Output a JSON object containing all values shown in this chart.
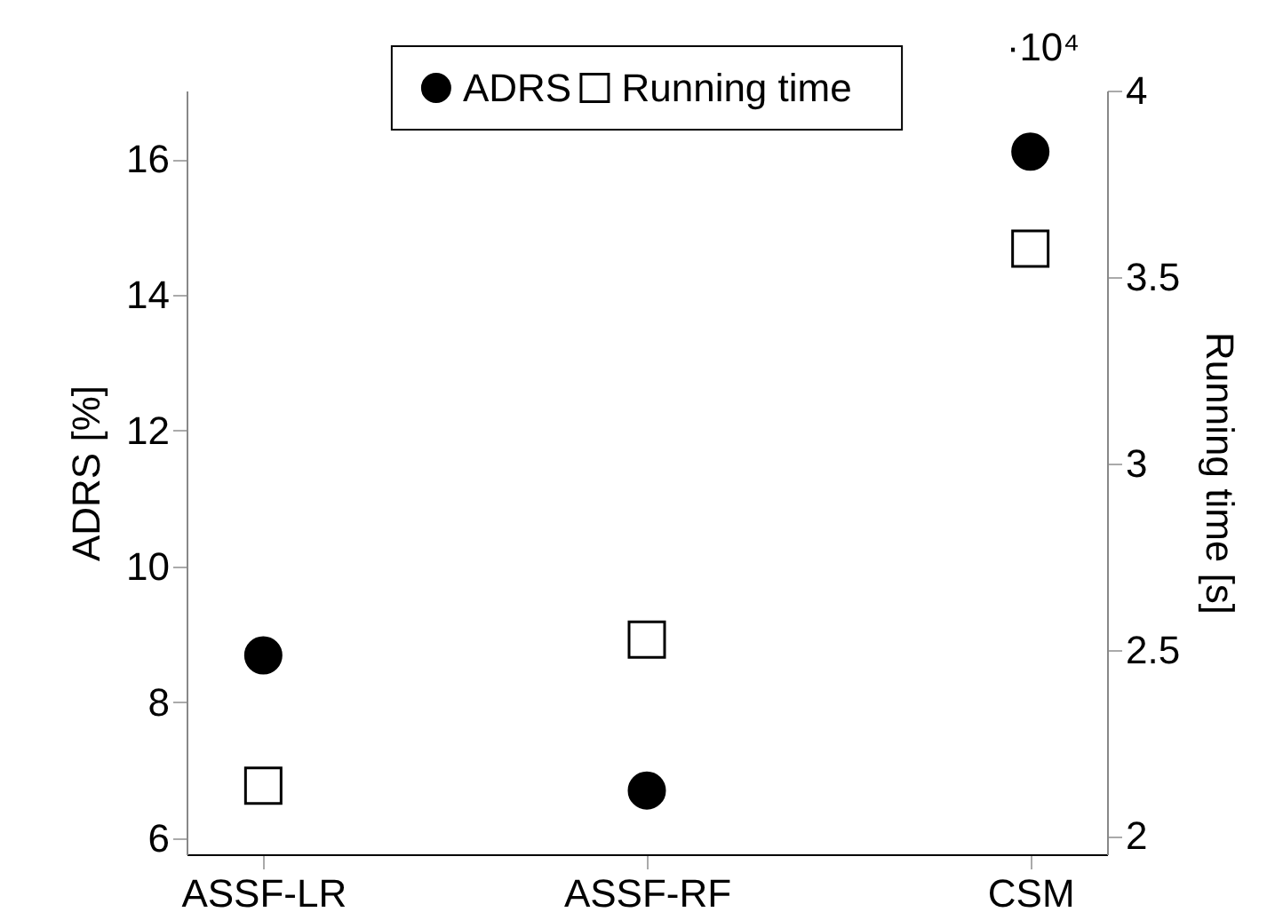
{
  "chart_data": {
    "type": "scatter",
    "categories": [
      "ASSF-LR",
      "ASSF-RF",
      "CSM"
    ],
    "ylabel": "ADRS [%]",
    "y2label": "Running time [s]",
    "ylim": [
      5.76,
      17.01
    ],
    "yticks": [
      6,
      8,
      10,
      12,
      14,
      16
    ],
    "y2lim": [
      1.951,
      4.0
    ],
    "y2ticks": [
      2,
      2.5,
      3,
      3.5,
      4
    ],
    "series": [
      {
        "name": "ADRS",
        "color": "#000000",
        "marker": "circle",
        "axis": "y",
        "values": [
          8.69,
          6.7,
          16.11
        ]
      },
      {
        "name": "Running time",
        "color": "#000000",
        "marker": "square",
        "axis": "y2",
        "values": [
          2.135,
          2.527,
          3.576
        ]
      }
    ],
    "annotations": [
      "·10⁴"
    ],
    "legend": "top",
    "grid": false
  }
}
